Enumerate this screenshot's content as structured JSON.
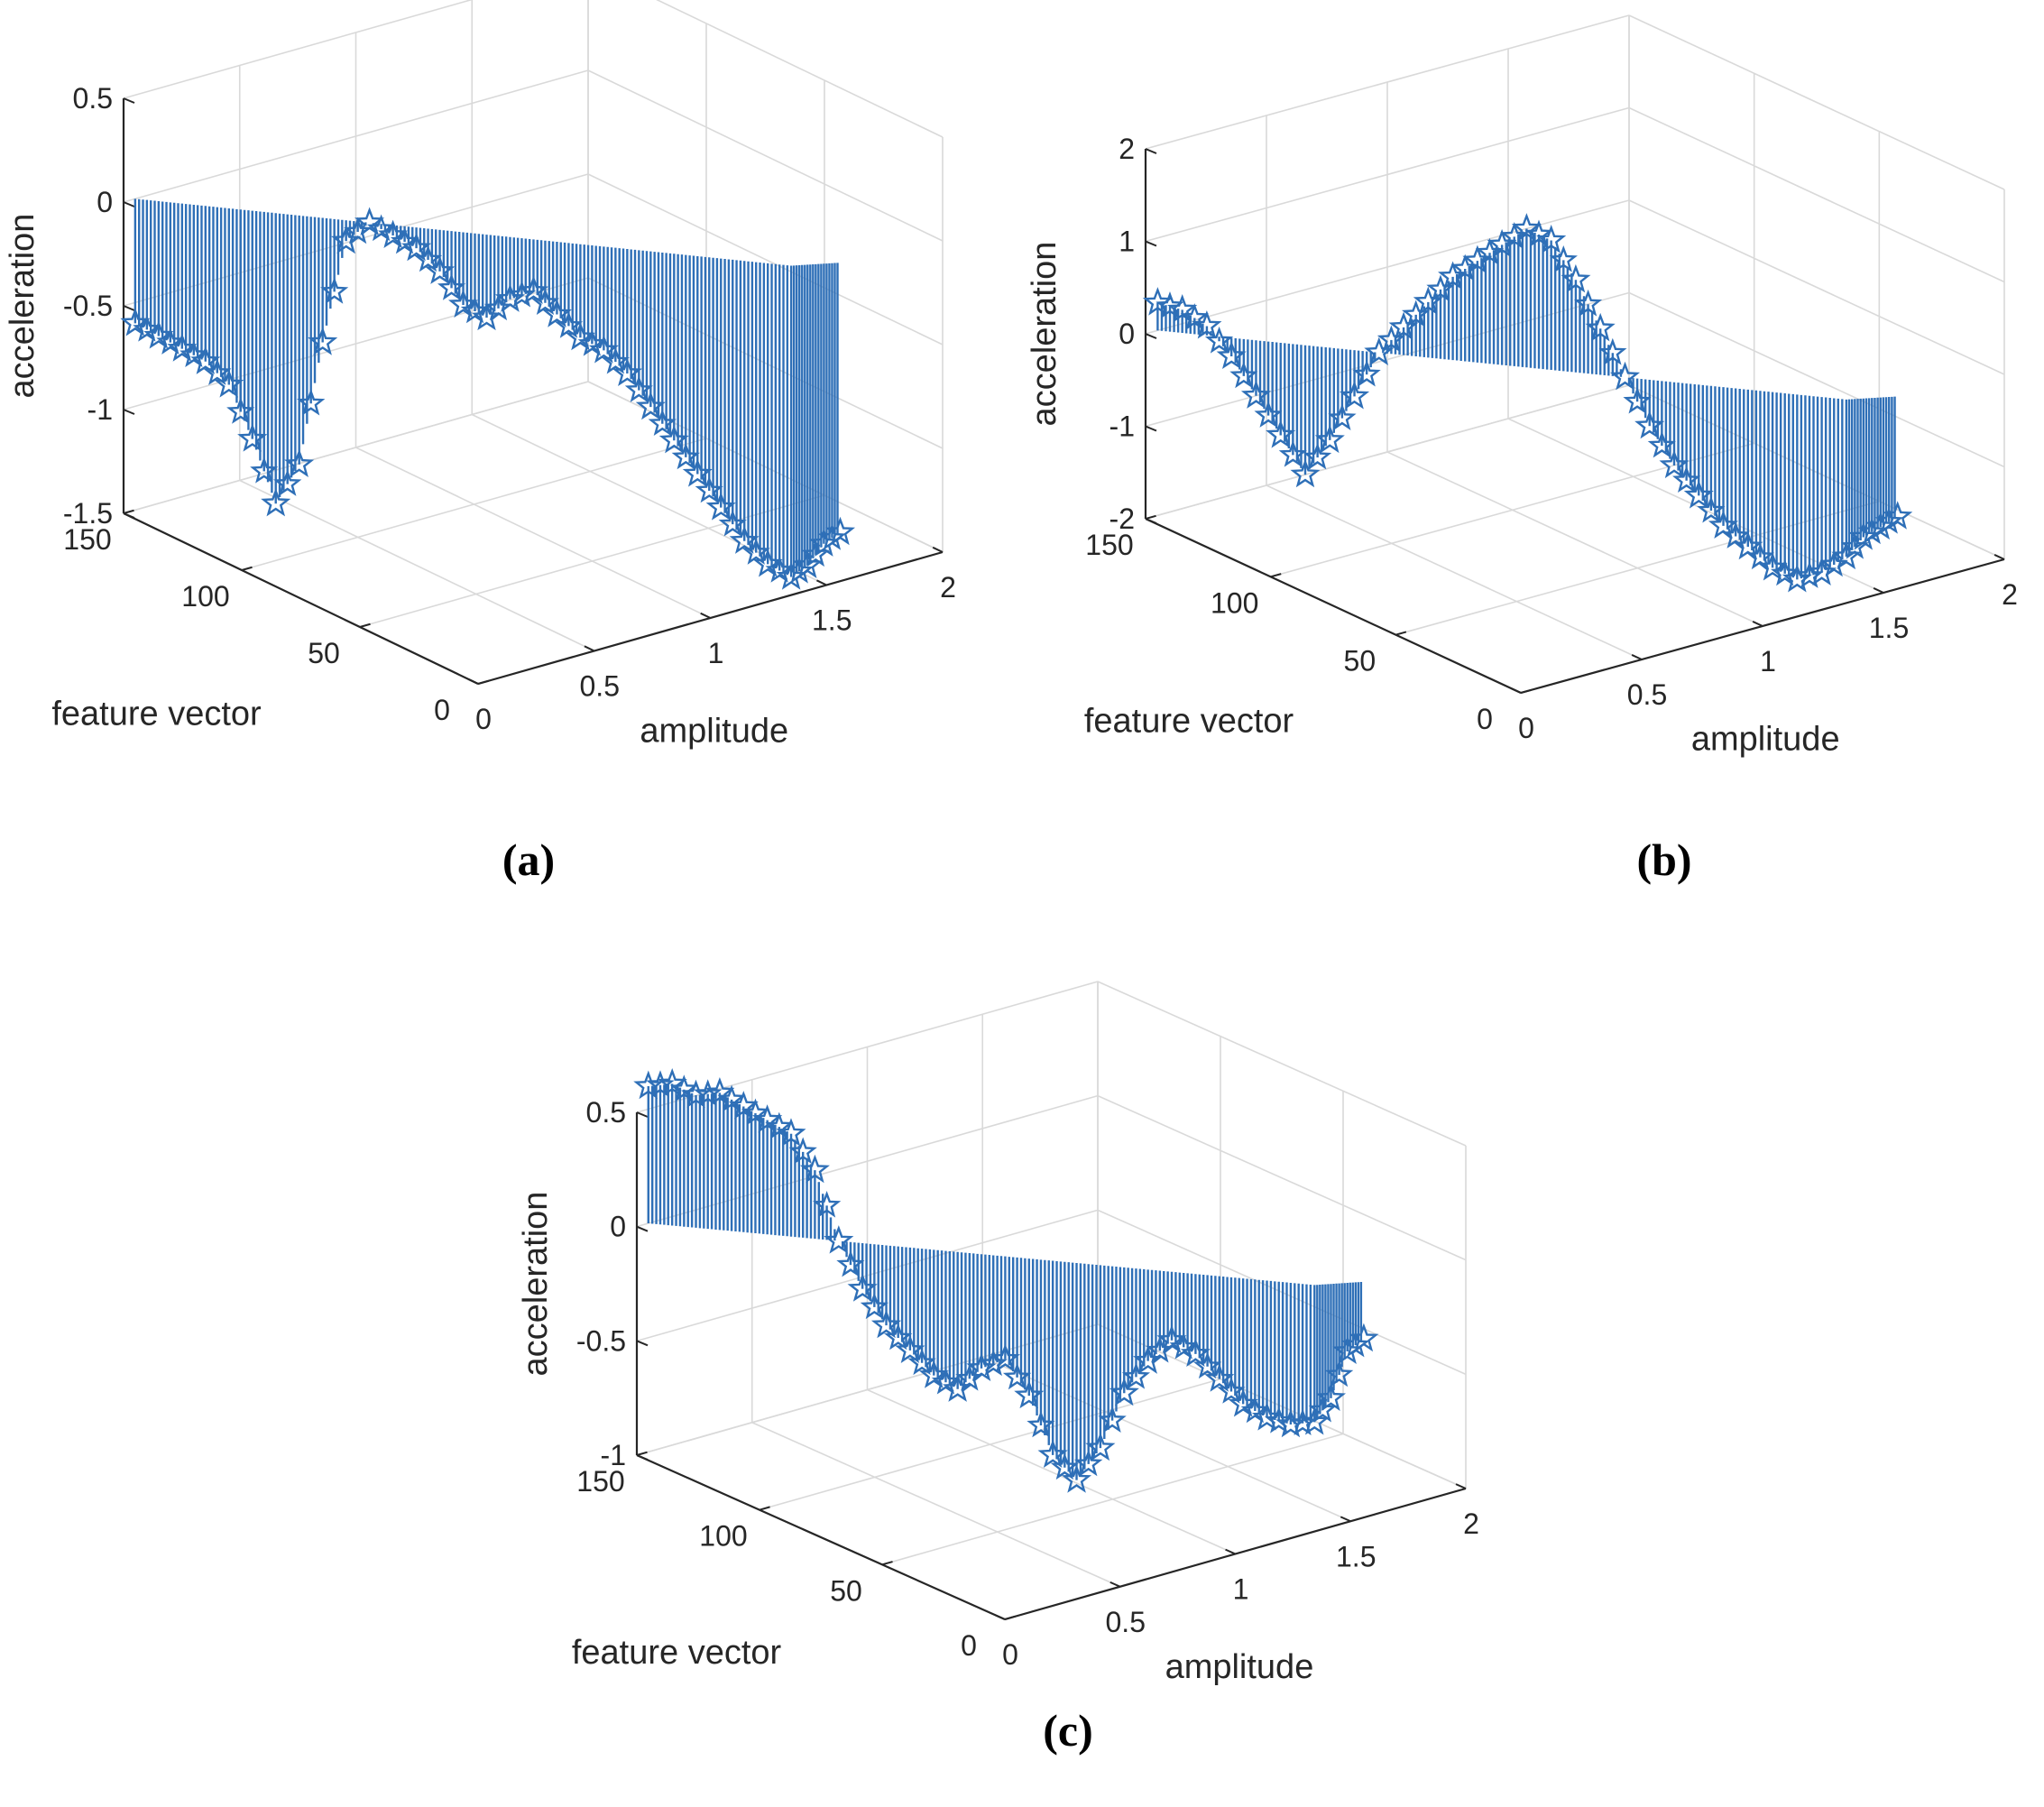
{
  "figure": {
    "colors": {
      "series": "#2e6fb7",
      "grid": "#d9d9d9",
      "axis": "#262626"
    }
  },
  "chart_data": [
    {
      "type": "3d-stem",
      "panel_label": "(a)",
      "xlabel": "amplitude",
      "ylabel": "feature vector",
      "zlabel": "acceleration",
      "xlim": [
        0,
        2
      ],
      "ylim": [
        0,
        150
      ],
      "zlim": [
        -1.5,
        0.5
      ],
      "xticks": [
        "0",
        "0.5",
        "1",
        "1.5",
        "2"
      ],
      "yticks": [
        "0",
        "50",
        "100",
        "150"
      ],
      "zticks": [
        "-1.5",
        "-1",
        "-0.5",
        "0",
        "0.5"
      ],
      "grid": true,
      "marker": "pentagram",
      "stem_base": 0,
      "series": [
        {
          "name": "acceleration",
          "x": [
            0.05,
            0.1,
            0.15,
            0.2,
            0.25,
            0.3,
            0.35,
            0.4,
            0.45,
            0.5,
            0.55,
            0.6,
            0.65,
            0.7,
            0.75,
            0.8,
            0.85,
            0.9,
            0.95,
            1.0,
            1.05,
            1.1,
            1.15,
            1.2,
            1.25,
            1.3,
            1.35,
            1.4,
            1.45,
            1.5,
            1.55,
            1.6
          ],
          "y": [
            150,
            145,
            140,
            135,
            130,
            125,
            120,
            115,
            110,
            105,
            100,
            95,
            90,
            85,
            80,
            75,
            70,
            65,
            60,
            55,
            50,
            45,
            40,
            35,
            30,
            25,
            20,
            15,
            10,
            8,
            6,
            4
          ],
          "z": [
            -0.6,
            -0.65,
            -0.7,
            -0.75,
            -0.85,
            -1.1,
            -1.4,
            -1.2,
            -0.6,
            -0.1,
            0.0,
            -0.05,
            -0.1,
            -0.2,
            -0.35,
            -0.4,
            -0.3,
            -0.25,
            -0.35,
            -0.45,
            -0.5,
            -0.6,
            -0.75,
            -0.9,
            -1.05,
            -1.2,
            -1.35,
            -1.45,
            -1.5,
            -1.45,
            -1.35,
            -1.3
          ]
        }
      ]
    },
    {
      "type": "3d-stem",
      "panel_label": "(b)",
      "xlabel": "amplitude",
      "ylabel": "feature vector",
      "zlabel": "acceleration",
      "xlim": [
        0,
        2
      ],
      "ylim": [
        0,
        150
      ],
      "zlim": [
        -2,
        2
      ],
      "xticks": [
        "0",
        "0.5",
        "1",
        "1.5",
        "2"
      ],
      "yticks": [
        "0",
        "50",
        "100",
        "150"
      ],
      "zticks": [
        "-2",
        "-1",
        "0",
        "1",
        "2"
      ],
      "grid": true,
      "marker": "pentagram",
      "stem_base": 0,
      "series": [
        {
          "name": "acceleration",
          "x": [
            0.05,
            0.1,
            0.15,
            0.2,
            0.25,
            0.3,
            0.35,
            0.4,
            0.45,
            0.5,
            0.55,
            0.6,
            0.65,
            0.7,
            0.75,
            0.8,
            0.85,
            0.9,
            0.95,
            1.0,
            1.05,
            1.1,
            1.15,
            1.2,
            1.25,
            1.3,
            1.35,
            1.4,
            1.45,
            1.5,
            1.55,
            1.6
          ],
          "y": [
            150,
            145,
            140,
            135,
            130,
            125,
            120,
            115,
            110,
            105,
            100,
            95,
            90,
            85,
            80,
            75,
            70,
            65,
            60,
            55,
            50,
            45,
            40,
            35,
            30,
            25,
            20,
            15,
            10,
            8,
            6,
            4
          ],
          "z": [
            0.3,
            0.25,
            0.1,
            -0.2,
            -0.6,
            -1.0,
            -1.4,
            -1.0,
            -0.5,
            0.0,
            0.3,
            0.6,
            0.9,
            1.1,
            1.3,
            1.5,
            1.4,
            1.0,
            0.5,
            0.0,
            -0.5,
            -0.9,
            -1.2,
            -1.5,
            -1.7,
            -1.9,
            -2.0,
            -1.9,
            -1.7,
            -1.5,
            -1.4,
            -1.3
          ]
        }
      ]
    },
    {
      "type": "3d-stem",
      "panel_label": "(c)",
      "xlabel": "amplitude",
      "ylabel": "feature vector",
      "zlabel": "acceleration",
      "xlim": [
        0,
        2
      ],
      "ylim": [
        0,
        150
      ],
      "zlim": [
        -1,
        0.5
      ],
      "xticks": [
        "0",
        "0.5",
        "1",
        "1.5",
        "2"
      ],
      "yticks": [
        "0",
        "50",
        "100",
        "150"
      ],
      "zticks": [
        "-1",
        "-0.5",
        "0",
        "0.5"
      ],
      "grid": true,
      "marker": "pentagram",
      "stem_base": 0,
      "series": [
        {
          "name": "acceleration",
          "x": [
            0.05,
            0.1,
            0.15,
            0.2,
            0.25,
            0.3,
            0.35,
            0.4,
            0.45,
            0.5,
            0.55,
            0.6,
            0.65,
            0.7,
            0.75,
            0.8,
            0.85,
            0.9,
            0.95,
            1.0,
            1.05,
            1.1,
            1.15,
            1.2,
            1.25,
            1.3,
            1.35,
            1.4,
            1.45,
            1.5,
            1.55,
            1.6
          ],
          "y": [
            150,
            145,
            140,
            135,
            130,
            125,
            120,
            115,
            110,
            105,
            100,
            95,
            90,
            85,
            80,
            75,
            70,
            65,
            60,
            55,
            50,
            45,
            40,
            35,
            30,
            25,
            20,
            15,
            10,
            8,
            6,
            4
          ],
          "z": [
            0.6,
            0.62,
            0.58,
            0.6,
            0.55,
            0.5,
            0.45,
            0.3,
            0.0,
            -0.2,
            -0.35,
            -0.45,
            -0.55,
            -0.6,
            -0.5,
            -0.45,
            -0.6,
            -0.85,
            -0.95,
            -0.8,
            -0.55,
            -0.4,
            -0.3,
            -0.35,
            -0.45,
            -0.55,
            -0.6,
            -0.62,
            -0.6,
            -0.5,
            -0.3,
            -0.25
          ]
        }
      ]
    }
  ]
}
